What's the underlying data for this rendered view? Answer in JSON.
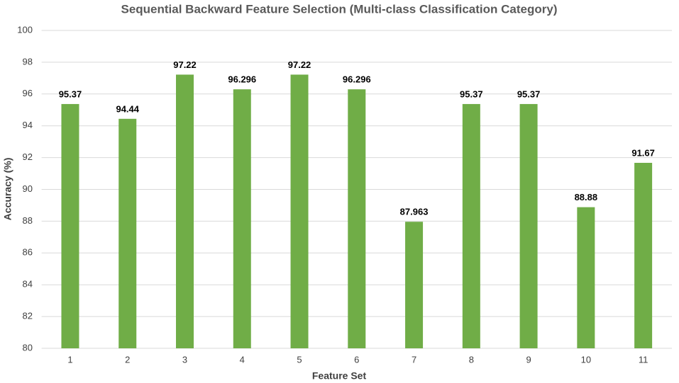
{
  "chart_data": {
    "type": "bar",
    "title": "Sequential Backward Feature Selection (Multi-class Classification Category)",
    "x_label": "Feature Set",
    "y_label": "Accuracy (%)",
    "categories": [
      "1",
      "2",
      "3",
      "4",
      "5",
      "6",
      "7",
      "8",
      "9",
      "10",
      "11"
    ],
    "values": [
      95.37,
      94.44,
      97.22,
      96.296,
      97.22,
      96.296,
      87.963,
      95.37,
      95.37,
      88.88,
      91.67
    ],
    "color": "#70ad47",
    "ylim": [
      80,
      100
    ],
    "yticks": [
      80,
      82,
      84,
      86,
      88,
      90,
      92,
      94,
      96,
      98,
      100
    ],
    "grid": true
  }
}
